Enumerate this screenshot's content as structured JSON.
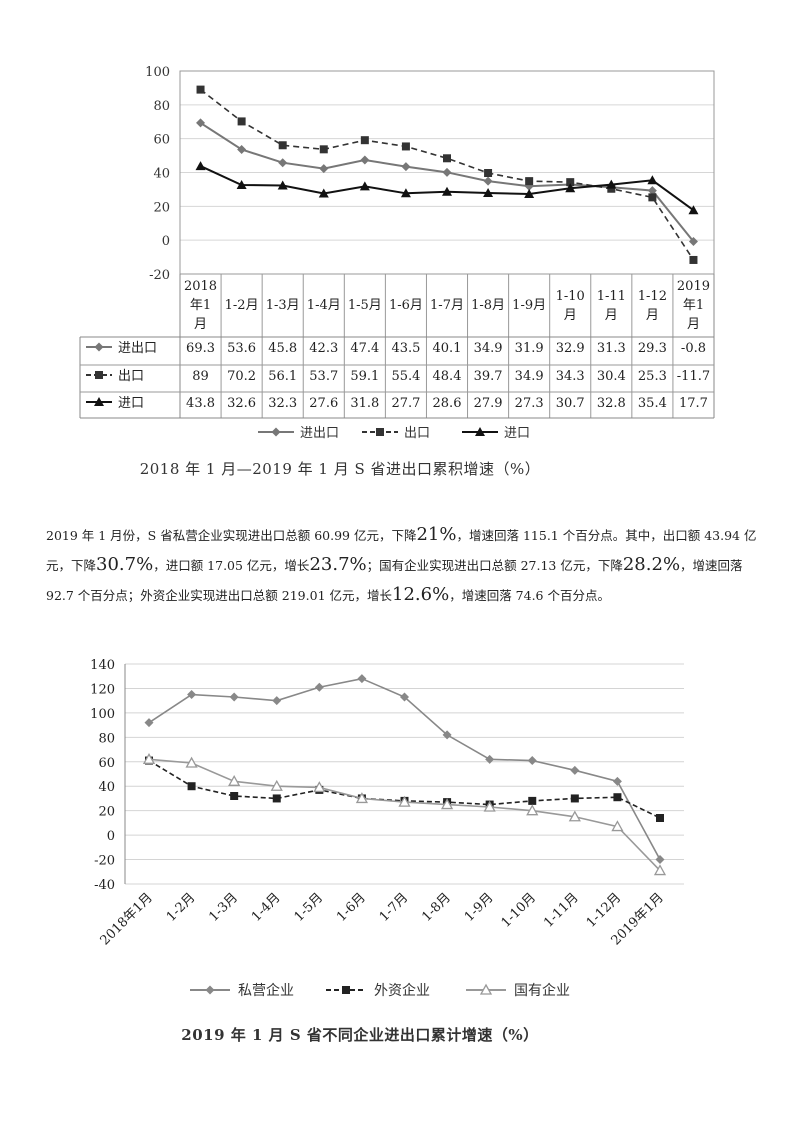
{
  "chart_data": [
    {
      "type": "line",
      "title": "2018 年 1 月—2019 年 1 月 S 省进出口累积增速（%）",
      "categories": [
        "2018年1月",
        "1-2月",
        "1-3月",
        "1-4月",
        "1-5月",
        "1-6月",
        "1-7月",
        "1-8月",
        "1-9月",
        "1-10月",
        "1-11月",
        "1-12月",
        "2019年1月"
      ],
      "series": [
        {
          "name": "进出口",
          "marker": "diamond",
          "style": "solid",
          "color": "#777777",
          "values": [
            "69.3",
            "53.6",
            "45.8",
            "42.3",
            "47.4",
            "43.5",
            "40.1",
            "34.9",
            "31.9",
            "32.9",
            "31.3",
            "29.3",
            "-0.8"
          ]
        },
        {
          "name": "出口",
          "marker": "square",
          "style": "dashed",
          "color": "#333333",
          "values": [
            "89",
            "70.2",
            "56.1",
            "53.7",
            "59.1",
            "55.4",
            "48.4",
            "39.7",
            "34.9",
            "34.3",
            "30.4",
            "25.3",
            "-11.7"
          ]
        },
        {
          "name": "进口",
          "marker": "triangle",
          "style": "solid",
          "color": "#111111",
          "values": [
            "43.8",
            "32.6",
            "32.3",
            "27.6",
            "31.8",
            "27.7",
            "28.6",
            "27.9",
            "27.3",
            "30.7",
            "32.8",
            "35.4",
            "17.7"
          ]
        }
      ],
      "ylim": [
        -20,
        100
      ],
      "yticks": [
        "100",
        "80",
        "60",
        "40",
        "20",
        "0",
        "-20"
      ],
      "grid": true,
      "legend": "bottom",
      "data_table": true
    },
    {
      "type": "line",
      "title": "2019 年 1 月 S 省不同企业进出口累计增速（%）",
      "categories": [
        "2018年1月",
        "1-2月",
        "1-3月",
        "1-4月",
        "1-5月",
        "1-6月",
        "1-7月",
        "1-8月",
        "1-9月",
        "1-10月",
        "1-11月",
        "1-12月",
        "2019年1月"
      ],
      "series": [
        {
          "name": "私营企业",
          "marker": "diamond",
          "style": "solid",
          "color": "#888888",
          "values": [
            92,
            115,
            113,
            110,
            121,
            128,
            113,
            82,
            62,
            61,
            53,
            44,
            -20
          ]
        },
        {
          "name": "外资企业",
          "marker": "square",
          "style": "dashed",
          "color": "#222222",
          "values": [
            61,
            40,
            32,
            30,
            37,
            30,
            28,
            27,
            25,
            28,
            30,
            31,
            14
          ]
        },
        {
          "name": "国有企业",
          "marker": "triangle-open",
          "style": "solid",
          "color": "#999999",
          "values": [
            62,
            59,
            44,
            40,
            39,
            30,
            27,
            25,
            23,
            20,
            15,
            7,
            -29
          ]
        }
      ],
      "ylim": [
        -40,
        140
      ],
      "yticks": [
        "140",
        "120",
        "100",
        "80",
        "60",
        "40",
        "20",
        "0",
        "-20",
        "-40"
      ],
      "grid": true,
      "legend": "bottom"
    }
  ],
  "paragraph": {
    "s1": "2019 年 1 月份，S 省私营企业实现进出口总额 60.99 亿元，下降",
    "v1": "21%",
    "s2": "，增速回落 115.1 个百分点。其中，出口额 43.94 亿元，下降",
    "v2": "30.7%",
    "s3": "，进口额 17.05 亿元，增长",
    "v3": "23.7%",
    "s4": "；国有企业实现进出口总额 27.13 亿元，下降",
    "v4": "28.2%",
    "s5": "，增速回落 92.7 个百分点；外资企业实现进出口总额 219.01 亿元，增长",
    "v5": "12.6%",
    "s6": "，增速回落 74.6 个百分点。"
  }
}
